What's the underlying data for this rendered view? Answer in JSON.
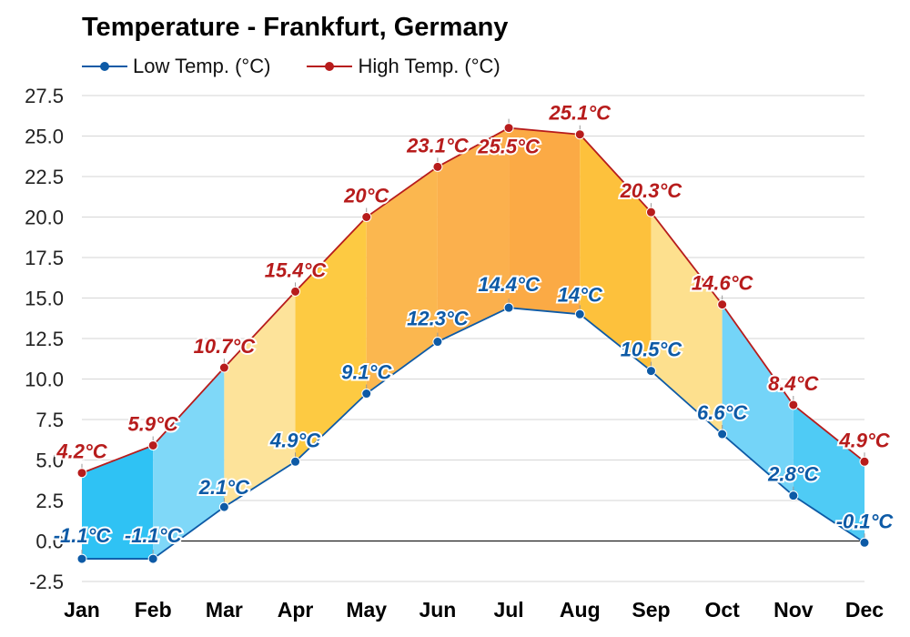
{
  "chart_data": {
    "type": "line",
    "title": "Temperature - Frankfurt, Germany",
    "categories": [
      "Jan",
      "Feb",
      "Mar",
      "Apr",
      "May",
      "Jun",
      "Jul",
      "Aug",
      "Sep",
      "Oct",
      "Nov",
      "Dec"
    ],
    "series": [
      {
        "name": "Low Temp. (°C)",
        "color": "#0d5aa6",
        "values": [
          -1.1,
          -1.1,
          2.1,
          4.9,
          9.1,
          12.3,
          14.4,
          14.0,
          10.5,
          6.6,
          2.8,
          -0.1
        ],
        "labels": [
          "-1.1°C",
          "-1.1°C",
          "2.1°C",
          "4.9°C",
          "9.1°C",
          "12.3°C",
          "14.4°C",
          "14°C",
          "10.5°C",
          "6.6°C",
          "2.8°C",
          "-0.1°C"
        ]
      },
      {
        "name": "High Temp. (°C)",
        "color": "#b71c1c",
        "values": [
          4.2,
          5.9,
          10.7,
          15.4,
          20.0,
          23.1,
          25.5,
          25.1,
          20.3,
          14.6,
          8.4,
          4.9
        ],
        "labels": [
          "4.2°C",
          "5.9°C",
          "10.7°C",
          "15.4°C",
          "20°C",
          "23.1°C",
          "25.5°C",
          "25.1°C",
          "20.3°C",
          "14.6°C",
          "8.4°C",
          "4.9°C"
        ]
      }
    ],
    "band_colors": [
      "#2fc2f4",
      "#7fd8f8",
      "#fde39a",
      "#fdca42",
      "#fbb74f",
      "#fbb04d",
      "#fbaa45",
      "#fdc13c",
      "#fde08e",
      "#74d4f8",
      "#4fcbf5"
    ],
    "ylim": [
      -2.5,
      27.5
    ],
    "yticks": [
      -2.5,
      0.0,
      2.5,
      5.0,
      7.5,
      10.0,
      12.5,
      15.0,
      17.5,
      20.0,
      22.5,
      25.0,
      27.5
    ],
    "ytick_labels": [
      "-2.5",
      "0.0",
      "2.5",
      "5.0",
      "7.5",
      "10.0",
      "12.5",
      "15.0",
      "17.5",
      "20.0",
      "22.5",
      "25.0",
      "27.5"
    ],
    "grid": true,
    "legend_position": "top-left"
  }
}
